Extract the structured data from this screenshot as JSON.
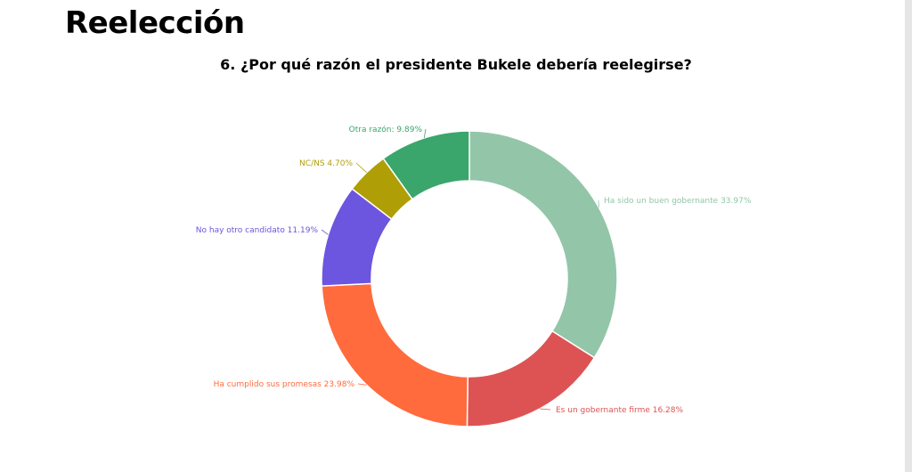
{
  "header": {
    "title": "Reelección"
  },
  "chart_data": {
    "type": "pie",
    "title": "6. ¿Por qué razón el presidente Bukele debería reelegirse?",
    "donut": true,
    "unit": "%",
    "slices": [
      {
        "label": "Ha sido un buen gobernante",
        "display": "Ha sido un buen gobernante 33.97%",
        "value": 33.97,
        "color": "#93c5a9"
      },
      {
        "label": "Es un gobernante firme",
        "display": "Es un gobernante firme 16.28%",
        "value": 16.28,
        "color": "#dd5353"
      },
      {
        "label": "Ha cumplido sus promesas",
        "display": "Ha cumplido sus promesas 23.98%",
        "value": 23.98,
        "color": "#ff6b3d"
      },
      {
        "label": "No hay otro candidato",
        "display": "No hay otro candidato 11.19%",
        "value": 11.19,
        "color": "#6c55df"
      },
      {
        "label": "NC/NS",
        "display": "NC/NS 4.70%",
        "value": 4.7,
        "color": "#b09e07"
      },
      {
        "label": "Otra razón",
        "display": "Otra razón: 9.89%",
        "value": 9.89,
        "color": "#3aa66c"
      }
    ]
  }
}
